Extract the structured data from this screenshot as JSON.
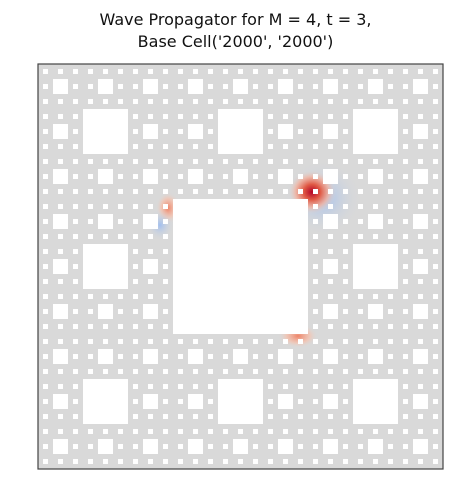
{
  "header": {
    "title_line_1": "Wave Propagator for M = 4, t = 3,",
    "title_line_2": "Base Cell('2000', '2000')"
  }
}
